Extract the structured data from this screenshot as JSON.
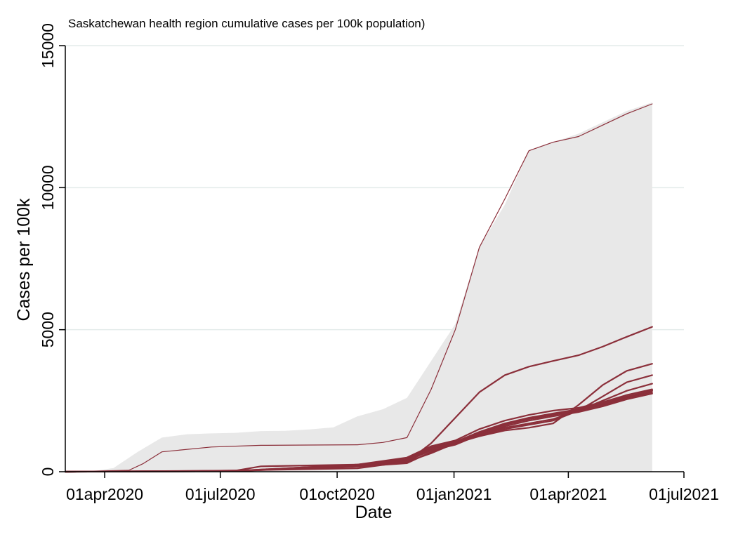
{
  "chart_data": {
    "type": "line",
    "title": "Saskatchewan health region cumulative cases per 100k population)",
    "xlabel": "Date",
    "ylabel": "Cases per 100k",
    "xlim": [
      "2020-03-01",
      "2021-07-01"
    ],
    "ylim": [
      0,
      15000
    ],
    "x_ticks": [
      {
        "date": "2020-04-01",
        "label": "01apr2020"
      },
      {
        "date": "2020-07-01",
        "label": "01jul2020"
      },
      {
        "date": "2020-10-01",
        "label": "01oct2020"
      },
      {
        "date": "2021-01-01",
        "label": "01jan2021"
      },
      {
        "date": "2021-04-01",
        "label": "01apr2021"
      },
      {
        "date": "2021-07-01",
        "label": "01jul2021"
      }
    ],
    "y_ticks": [
      {
        "value": 0,
        "label": "0"
      },
      {
        "value": 5000,
        "label": "5000"
      },
      {
        "value": 10000,
        "label": "10000"
      },
      {
        "value": 15000,
        "label": "15000"
      }
    ],
    "grid": "horizontal",
    "legend": "none",
    "range_band": {
      "x": [
        "2020-03-01",
        "2020-03-20",
        "2020-04-08",
        "2020-04-27",
        "2020-05-16",
        "2020-06-05",
        "2020-06-24",
        "2020-07-13",
        "2020-08-02",
        "2020-08-21",
        "2020-09-09",
        "2020-09-28",
        "2020-10-17",
        "2020-11-06",
        "2020-11-25",
        "2020-12-14",
        "2021-01-02",
        "2021-01-21",
        "2021-02-10",
        "2021-03-01",
        "2021-03-20",
        "2021-04-09",
        "2021-04-28",
        "2021-05-17",
        "2021-06-06"
      ],
      "upper": [
        0,
        0,
        130,
        700,
        1200,
        1320,
        1350,
        1370,
        1430,
        1440,
        1490,
        1560,
        1950,
        2200,
        2600,
        3900,
        5200,
        7900,
        9400,
        11300,
        11600,
        11900,
        12300,
        12700,
        13000
      ],
      "lower": [
        0,
        0,
        0,
        0,
        0,
        0,
        0,
        0,
        0,
        0,
        0,
        0,
        0,
        0,
        0,
        0,
        0,
        0,
        0,
        0,
        0,
        0,
        0,
        0,
        0
      ]
    },
    "series_color": "#8b2f3a",
    "band_color": "#e8e8e8",
    "series": [
      {
        "x": [
          "2020-03-01",
          "2020-04-20",
          "2020-05-01",
          "2020-05-16",
          "2020-06-24",
          "2020-08-02",
          "2020-09-09",
          "2020-10-17",
          "2020-11-06",
          "2020-11-25",
          "2020-12-14",
          "2021-01-02",
          "2021-01-21",
          "2021-02-10",
          "2021-03-01",
          "2021-03-20",
          "2021-04-09",
          "2021-04-28",
          "2021-05-17",
          "2021-06-06"
        ],
        "values": [
          0,
          50,
          280,
          700,
          870,
          930,
          940,
          950,
          1030,
          1200,
          2900,
          5000,
          7900,
          9600,
          11300,
          11600,
          11800,
          12200,
          12600,
          12950
        ]
      },
      {
        "x": [
          "2020-03-01",
          "2020-06-24",
          "2020-10-17",
          "2020-11-25",
          "2020-12-14",
          "2021-01-02",
          "2021-01-21",
          "2021-02-10",
          "2021-03-01",
          "2021-03-20",
          "2021-04-09",
          "2021-04-28",
          "2021-05-17",
          "2021-06-06"
        ],
        "values": [
          0,
          30,
          120,
          350,
          1000,
          1900,
          2800,
          3400,
          3700,
          3900,
          4100,
          4400,
          4750,
          5100
        ]
      },
      {
        "x": [
          "2020-03-01",
          "2020-07-13",
          "2020-08-02",
          "2020-10-17",
          "2020-11-25",
          "2020-12-14",
          "2021-01-02",
          "2021-01-21",
          "2021-02-10",
          "2021-03-01",
          "2021-03-20",
          "2021-04-09",
          "2021-04-28",
          "2021-05-17",
          "2021-06-06"
        ],
        "values": [
          0,
          40,
          190,
          250,
          400,
          800,
          1050,
          1250,
          1450,
          1550,
          1700,
          2350,
          3050,
          3550,
          3800
        ]
      },
      {
        "x": [
          "2020-03-01",
          "2020-07-13",
          "2020-10-17",
          "2020-11-25",
          "2020-12-14",
          "2021-01-02",
          "2021-01-21",
          "2021-02-10",
          "2021-03-01",
          "2021-03-20",
          "2021-04-09",
          "2021-04-28",
          "2021-05-17",
          "2021-06-06"
        ],
        "values": [
          0,
          30,
          200,
          350,
          650,
          1000,
          1250,
          1500,
          1650,
          1800,
          2150,
          2650,
          3150,
          3400
        ]
      },
      {
        "x": [
          "2020-03-01",
          "2020-07-13",
          "2020-10-17",
          "2020-11-25",
          "2020-12-14",
          "2021-01-02",
          "2021-01-21",
          "2021-02-10",
          "2021-03-01",
          "2021-03-20",
          "2021-04-09",
          "2021-04-28",
          "2021-05-17",
          "2021-06-06"
        ],
        "values": [
          0,
          30,
          180,
          300,
          700,
          1050,
          1300,
          1550,
          1700,
          1850,
          2150,
          2500,
          2850,
          3100
        ]
      },
      {
        "x": [
          "2020-03-01",
          "2020-07-13",
          "2020-10-17",
          "2020-11-25",
          "2020-12-14",
          "2021-01-02",
          "2021-01-21",
          "2021-02-10",
          "2021-03-01",
          "2021-03-20",
          "2021-04-09",
          "2021-04-28",
          "2021-05-17",
          "2021-06-06"
        ],
        "values": [
          0,
          30,
          250,
          500,
          900,
          1100,
          1500,
          1800,
          2000,
          2150,
          2250,
          2450,
          2700,
          2900
        ]
      },
      {
        "x": [
          "2020-03-01",
          "2020-07-13",
          "2020-10-17",
          "2020-11-25",
          "2020-12-14",
          "2021-01-02",
          "2021-01-21",
          "2021-02-10",
          "2021-03-01",
          "2021-03-20",
          "2021-04-09",
          "2021-04-28",
          "2021-05-17",
          "2021-06-06"
        ],
        "values": [
          0,
          30,
          250,
          450,
          850,
          1050,
          1400,
          1700,
          1900,
          2050,
          2200,
          2400,
          2650,
          2850
        ]
      },
      {
        "x": [
          "2020-03-01",
          "2020-07-13",
          "2020-10-17",
          "2020-11-25",
          "2020-12-14",
          "2021-01-02",
          "2021-01-21",
          "2021-02-10",
          "2021-03-01",
          "2021-03-20",
          "2021-04-09",
          "2021-04-28",
          "2021-05-17",
          "2021-06-06"
        ],
        "values": [
          0,
          20,
          220,
          400,
          800,
          1000,
          1350,
          1650,
          1850,
          2000,
          2150,
          2350,
          2600,
          2800
        ]
      },
      {
        "x": [
          "2020-03-01",
          "2020-07-13",
          "2020-10-17",
          "2020-11-25",
          "2020-12-14",
          "2021-01-02",
          "2021-01-21",
          "2021-02-10",
          "2021-03-01",
          "2021-03-20",
          "2021-04-09",
          "2021-04-28",
          "2021-05-17",
          "2021-06-06"
        ],
        "values": [
          0,
          20,
          200,
          380,
          750,
          950,
          1300,
          1600,
          1800,
          1950,
          2100,
          2300,
          2550,
          2750
        ]
      },
      {
        "x": [
          "2020-03-01",
          "2020-07-13",
          "2020-10-17",
          "2020-11-25",
          "2020-12-14",
          "2021-01-02",
          "2021-01-21",
          "2021-02-10",
          "2021-03-01",
          "2021-03-20",
          "2021-04-09",
          "2021-04-28",
          "2021-05-17",
          "2021-06-06"
        ],
        "values": [
          0,
          20,
          230,
          420,
          820,
          1030,
          1380,
          1680,
          1880,
          2030,
          2180,
          2380,
          2630,
          2870
        ]
      }
    ]
  }
}
